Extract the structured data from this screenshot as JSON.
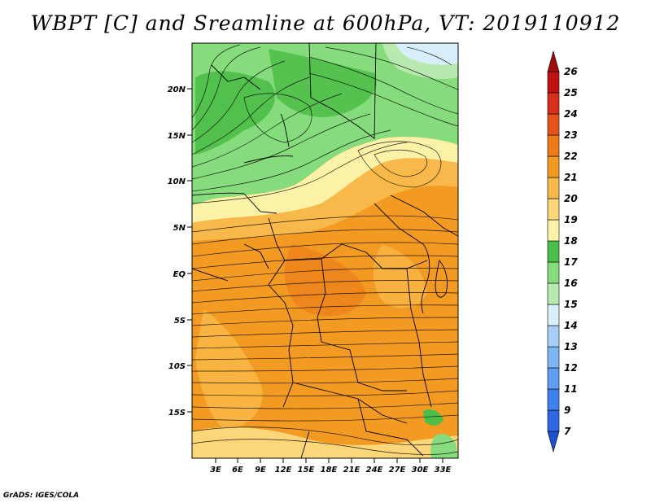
{
  "title": "WBPT [C] and Sreamline at 600hPa, VT: 2019110912",
  "credit": "GrADS: IGES/COLA",
  "lat_labels": [
    "20N",
    "15N",
    "10N",
    "5N",
    "EQ",
    "5S",
    "10S",
    "15S"
  ],
  "lon_labels": [
    "3E",
    "6E",
    "9E",
    "12E",
    "15E",
    "18E",
    "21E",
    "24E",
    "27E",
    "30E",
    "33E"
  ],
  "colorbar": {
    "labels": [
      "7",
      "9",
      "11",
      "12",
      "13",
      "14",
      "15",
      "16",
      "17",
      "18",
      "19",
      "20",
      "21",
      "22",
      "23",
      "24",
      "25",
      "26"
    ],
    "colors": [
      "#1f4fd0",
      "#2e66e6",
      "#3f82ee",
      "#5b9ef2",
      "#7db6f5",
      "#a8d0f7",
      "#d8eefa",
      "#b8eab0",
      "#86dc7c",
      "#4cbd48",
      "#fbf2a8",
      "#fbd77a",
      "#f9b94a",
      "#f39a22",
      "#ec7a18",
      "#e5531a",
      "#d9301b",
      "#bf1414",
      "#9e0b0b"
    ]
  },
  "field_colors": {
    "green_dark": "#4cbd48",
    "green_mid": "#86dc7c",
    "green_light": "#b8eab0",
    "cyan_light": "#d8eefa",
    "yellow": "#fbf2a8",
    "orange_light": "#f9b94a",
    "orange": "#f39a22",
    "orange_dark": "#ec7a18"
  }
}
